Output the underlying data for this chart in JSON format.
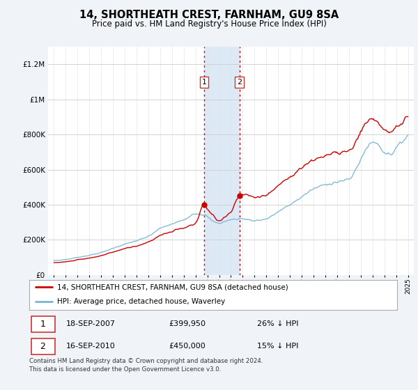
{
  "title": "14, SHORTHEATH CREST, FARNHAM, GU9 8SA",
  "subtitle": "Price paid vs. HM Land Registry's House Price Index (HPI)",
  "legend_line1": "14, SHORTHEATH CREST, FARNHAM, GU9 8SA (detached house)",
  "legend_line2": "HPI: Average price, detached house, Waverley",
  "footnote": "Contains HM Land Registry data © Crown copyright and database right 2024.\nThis data is licensed under the Open Government Licence v3.0.",
  "sale1_date": "18-SEP-2007",
  "sale1_price": "£399,950",
  "sale1_note": "26% ↓ HPI",
  "sale2_date": "16-SEP-2010",
  "sale2_price": "£450,000",
  "sale2_note": "15% ↓ HPI",
  "sale1_x": 2007.72,
  "sale1_y": 399950,
  "sale2_x": 2010.72,
  "sale2_y": 450000,
  "hpi_color": "#7ab3d4",
  "price_color": "#cc0000",
  "background_color": "#f0f4f8",
  "plot_bg_color": "#ffffff",
  "shade_color": "#ddeaf5",
  "ylim_min": 0,
  "ylim_max": 1300000,
  "xlim_min": 1994.5,
  "xlim_max": 2025.5,
  "yticks": [
    0,
    200000,
    400000,
    600000,
    800000,
    1000000,
    1200000
  ]
}
